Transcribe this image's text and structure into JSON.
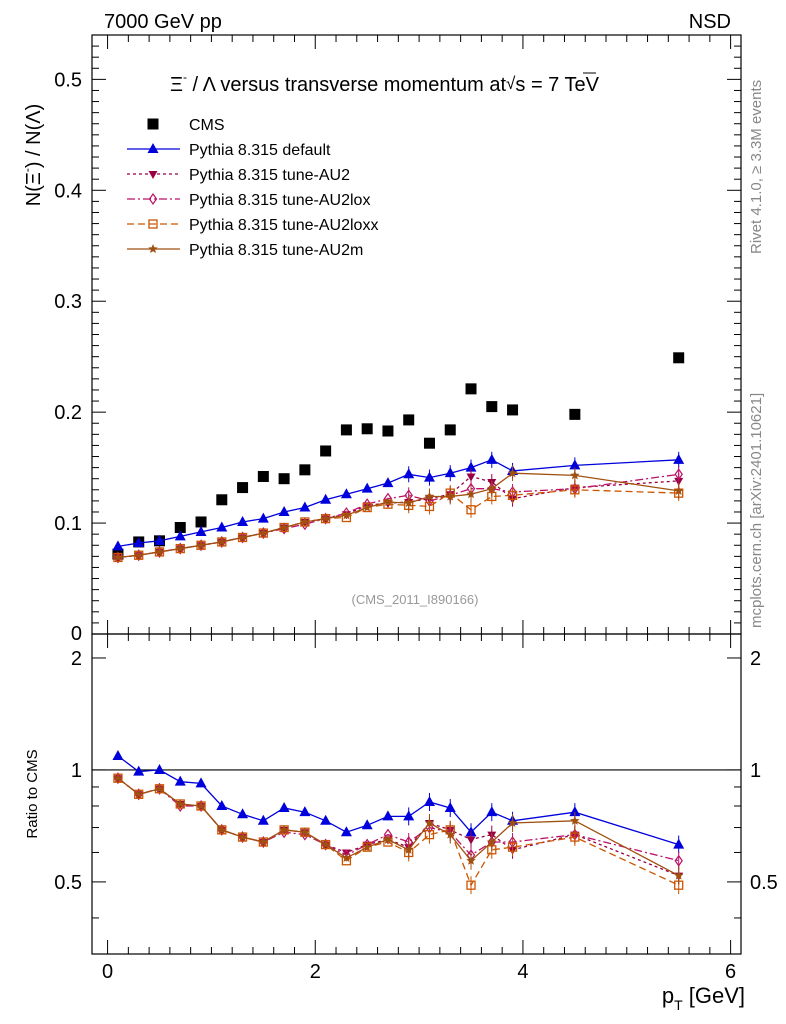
{
  "header": {
    "left": "7000 GeV pp",
    "right": "NSD"
  },
  "side_labels": {
    "rivet": "Rivet 4.1.0, ≥ 3.3M events",
    "mcplots": "mcplots.cern.ch [arXiv:2401.10621]"
  },
  "chart_data": {
    "type": "scatter",
    "title": "Ξ⁻ / Λ versus transverse momentum at √s = 7 TeV",
    "title_parts": {
      "lead": "Ξ",
      "sup": "-",
      "mid": " / Λ versus transverse momentum at",
      "sqrt": "√",
      "tail": "s = 7 TeV"
    },
    "ylabel": "N(Ξ⁻) / N(Λ)",
    "ylabel_parts": {
      "a": "N(Ξ",
      "sup": "-",
      "b": ")  /  N(Λ)"
    },
    "xlabel": "p_T [GeV]",
    "xlabel_parts": {
      "p": "p",
      "sub": "T",
      "unit": " [GeV]"
    },
    "ratio_ylabel": "Ratio to CMS",
    "analysis_tag": "(CMS_2011_I890166)",
    "xlim": [
      -0.15,
      6.1
    ],
    "ylim": [
      0,
      0.54
    ],
    "ratio_ylim": [
      0.32,
      2.32
    ],
    "x_ticks": [
      "0",
      "2",
      "4",
      "6"
    ],
    "y_ticks": [
      "0.1",
      "0.2",
      "0.3",
      "0.4",
      "0.5"
    ],
    "y_tick_zero": "0",
    "ratio_ticks": [
      "0.5",
      "1",
      "2"
    ],
    "x": [
      0.1,
      0.3,
      0.5,
      0.7,
      0.9,
      1.1,
      1.3,
      1.5,
      1.7,
      1.9,
      2.1,
      2.3,
      2.5,
      2.7,
      2.9,
      3.1,
      3.3,
      3.5,
      3.7,
      3.9,
      4.5,
      5.5
    ],
    "series": [
      {
        "name": "CMS",
        "color": "#000000",
        "marker": "square",
        "line": "none",
        "values": [
          0.072,
          0.083,
          0.084,
          0.096,
          0.101,
          0.121,
          0.132,
          0.142,
          0.14,
          0.148,
          0.165,
          0.184,
          0.185,
          0.183,
          0.193,
          0.172,
          0.184,
          0.221,
          0.205,
          0.202,
          0.198,
          0.249
        ],
        "ratio": [
          1.0,
          1.0,
          1.0,
          1.0,
          1.0,
          1.0,
          1.0,
          1.0,
          1.0,
          1.0,
          1.0,
          1.0,
          1.0,
          1.0,
          1.0,
          1.0,
          1.0,
          1.0,
          1.0,
          1.0,
          1.0,
          1.0
        ]
      },
      {
        "name": "Pythia 8.315 default",
        "color": "#0000dd",
        "marker": "triangle-up",
        "line": "solid",
        "values": [
          0.079,
          0.082,
          0.084,
          0.088,
          0.092,
          0.096,
          0.101,
          0.104,
          0.11,
          0.114,
          0.121,
          0.126,
          0.131,
          0.136,
          0.144,
          0.141,
          0.145,
          0.15,
          0.157,
          0.147,
          0.152,
          0.157
        ],
        "ratio": [
          1.09,
          0.99,
          1.0,
          0.93,
          0.92,
          0.8,
          0.76,
          0.73,
          0.79,
          0.77,
          0.73,
          0.68,
          0.71,
          0.75,
          0.75,
          0.82,
          0.79,
          0.68,
          0.77,
          0.73,
          0.77,
          0.63
        ]
      },
      {
        "name": "Pythia 8.315 tune-AU2",
        "color": "#990044",
        "marker": "triangle-down",
        "line": "dotted",
        "values": [
          0.069,
          0.071,
          0.074,
          0.077,
          0.08,
          0.083,
          0.087,
          0.091,
          0.096,
          0.101,
          0.104,
          0.108,
          0.116,
          0.118,
          0.119,
          0.122,
          0.126,
          0.142,
          0.137,
          0.122,
          0.132,
          0.138
        ],
        "ratio": [
          0.95,
          0.86,
          0.89,
          0.81,
          0.8,
          0.69,
          0.66,
          0.64,
          0.69,
          0.68,
          0.63,
          0.6,
          0.63,
          0.65,
          0.62,
          0.72,
          0.69,
          0.65,
          0.67,
          0.61,
          0.67,
          0.52
        ]
      },
      {
        "name": "Pythia 8.315 tune-AU2lox",
        "color": "#bb1166",
        "marker": "diamond-open",
        "line": "dashdot",
        "values": [
          0.069,
          0.071,
          0.074,
          0.077,
          0.08,
          0.083,
          0.087,
          0.091,
          0.095,
          0.099,
          0.104,
          0.109,
          0.117,
          0.122,
          0.125,
          0.12,
          0.125,
          0.131,
          0.131,
          0.128,
          0.131,
          0.144
        ],
        "ratio": [
          0.95,
          0.86,
          0.89,
          0.8,
          0.8,
          0.69,
          0.66,
          0.64,
          0.68,
          0.67,
          0.63,
          0.59,
          0.63,
          0.67,
          0.64,
          0.7,
          0.68,
          0.59,
          0.64,
          0.64,
          0.67,
          0.57
        ]
      },
      {
        "name": "Pythia 8.315 tune-AU2loxx",
        "color": "#cc5500",
        "marker": "square-open",
        "line": "dashed",
        "values": [
          0.069,
          0.071,
          0.074,
          0.077,
          0.08,
          0.083,
          0.087,
          0.091,
          0.096,
          0.101,
          0.104,
          0.105,
          0.114,
          0.117,
          0.116,
          0.115,
          0.127,
          0.112,
          0.124,
          0.125,
          0.13,
          0.127
        ],
        "ratio": [
          0.95,
          0.86,
          0.89,
          0.81,
          0.8,
          0.69,
          0.66,
          0.64,
          0.69,
          0.68,
          0.63,
          0.57,
          0.62,
          0.64,
          0.6,
          0.67,
          0.69,
          0.49,
          0.61,
          0.62,
          0.66,
          0.49
        ]
      },
      {
        "name": "Pythia 8.315 tune-AU2m",
        "color": "#a05010",
        "marker": "star",
        "line": "solid",
        "values": [
          0.069,
          0.071,
          0.074,
          0.077,
          0.08,
          0.083,
          0.087,
          0.091,
          0.096,
          0.101,
          0.104,
          0.107,
          0.114,
          0.119,
          0.118,
          0.124,
          0.124,
          0.126,
          0.131,
          0.145,
          0.143,
          0.129
        ],
        "ratio": [
          0.95,
          0.86,
          0.89,
          0.81,
          0.8,
          0.69,
          0.66,
          0.64,
          0.69,
          0.68,
          0.63,
          0.58,
          0.62,
          0.65,
          0.61,
          0.72,
          0.67,
          0.57,
          0.64,
          0.72,
          0.73,
          0.52
        ]
      }
    ]
  }
}
